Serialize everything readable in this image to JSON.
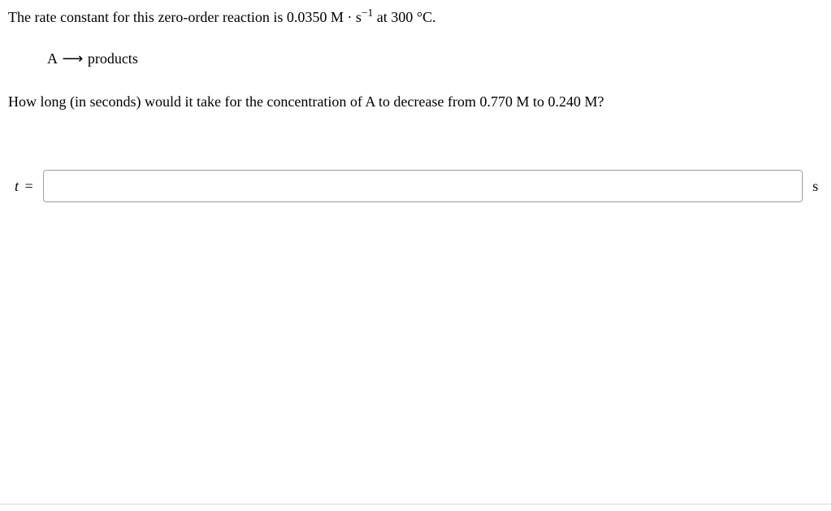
{
  "question": {
    "line1_pre": "The rate constant for this zero-order reaction is ",
    "rate_constant": "0.0350 M · s",
    "rate_constant_exp": "−1",
    "line1_post": " at 300 °C.",
    "reaction_lhs": "A ",
    "reaction_arrow": "⟶",
    "reaction_rhs": " products",
    "line3": "How long (in seconds) would it take for the concentration of A to decrease from 0.770 M to 0.240 M?"
  },
  "answer": {
    "label_var": "t",
    "label_eq": " =",
    "value": "",
    "unit": "s"
  },
  "style": {
    "border_color": "#d0d0d0",
    "input_border": "#a0a0a0",
    "text_color": "#000000",
    "background": "#ffffff"
  }
}
